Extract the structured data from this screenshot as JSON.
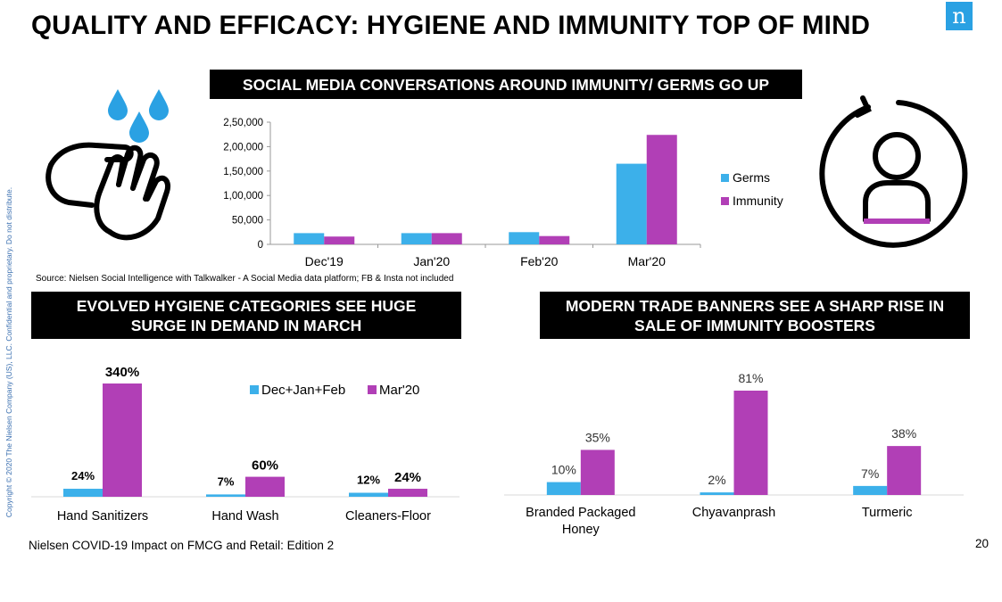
{
  "title": "QUALITY AND EFFICACY: HYGIENE AND IMMUNITY TOP OF MIND",
  "logo_letter": "n",
  "side_copyright": "Copyright © 2020 The Nielsen Company (US), LLC. Confidential and proprietary. Do not distribute.",
  "source_note": "Source: Nielsen Social Intelligence with Talkwalker - A Social Media data platform; FB & Insta not included",
  "footer": "Nielsen COVID-19 Impact on FMCG and Retail: Edition 2",
  "page_number": "20",
  "colors": {
    "blue": "#3cb0ea",
    "purple": "#b13fb6",
    "banner": "#000000"
  },
  "icons": {
    "left": "hand-washing-icon",
    "right": "immunity-person-icon"
  },
  "banners": {
    "social": "SOCIAL MEDIA CONVERSATIONS AROUND IMMUNITY/ GERMS GO UP",
    "hygiene_line1": "EVOLVED HYGIENE CATEGORIES SEE HUGE",
    "hygiene_line2": "SURGE IN DEMAND IN MARCH",
    "trade_line1": "MODERN TRADE BANNERS SEE A SHARP RISE IN",
    "trade_line2": "SALE OF IMMUNITY BOOSTERS"
  },
  "chart_data": [
    {
      "id": "social",
      "type": "bar",
      "categories": [
        "Dec'19",
        "Jan'20",
        "Feb'20",
        "Mar'20"
      ],
      "series": [
        {
          "name": "Germs",
          "values": [
            23000,
            23000,
            25000,
            165000
          ]
        },
        {
          "name": "Immunity",
          "values": [
            16000,
            23000,
            17000,
            224000
          ]
        }
      ],
      "yticks": [
        "0",
        "50,000",
        "1,00,000",
        "1,50,000",
        "2,00,000",
        "2,50,000"
      ],
      "ylim": [
        0,
        250000
      ],
      "legend": "right"
    },
    {
      "id": "hygiene",
      "type": "bar",
      "categories": [
        "Hand Sanitizers",
        "Hand Wash",
        "Cleaners-Floor"
      ],
      "series": [
        {
          "name": "Dec+Jan+Feb",
          "values": [
            24,
            7,
            12
          ],
          "labels": [
            "24%",
            "7%",
            "12%"
          ]
        },
        {
          "name": "Mar'20",
          "values": [
            340,
            60,
            24
          ],
          "labels": [
            "340%",
            "60%",
            "24%"
          ]
        }
      ],
      "legend": "top"
    },
    {
      "id": "trade",
      "type": "bar",
      "categories": [
        [
          "Branded Packaged",
          "Honey"
        ],
        [
          "Chyavanprash"
        ],
        [
          "Turmeric"
        ]
      ],
      "series": [
        {
          "values": [
            10,
            2,
            7
          ],
          "labels": [
            "10%",
            "2%",
            "7%"
          ]
        },
        {
          "values": [
            35,
            81,
            38
          ],
          "labels": [
            "35%",
            "81%",
            "38%"
          ]
        }
      ]
    }
  ]
}
